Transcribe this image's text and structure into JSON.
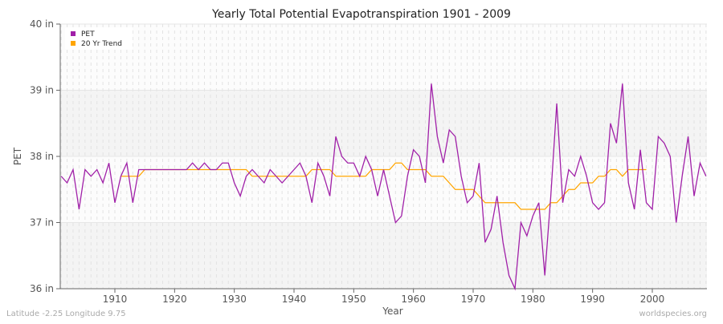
{
  "chart_data": {
    "type": "line",
    "title": "Yearly Total Potential Evapotranspiration 1901 - 2009",
    "xlabel": "Year",
    "ylabel": "PET",
    "xlim": [
      1901,
      2009
    ],
    "ylim": [
      36,
      40
    ],
    "x_ticks": [
      1910,
      1920,
      1930,
      1940,
      1950,
      1960,
      1970,
      1980,
      1990,
      2000
    ],
    "y_ticks": [
      {
        "v": 36,
        "label": "36 in"
      },
      {
        "v": 37,
        "label": "37 in"
      },
      {
        "v": 38,
        "label": "38 in"
      },
      {
        "v": 39,
        "label": "39 in"
      },
      {
        "v": 40,
        "label": "40 in"
      }
    ],
    "grid": true,
    "legend_position": "top-left",
    "series": [
      {
        "name": "PET",
        "color": "#a020a8",
        "x_start": 1901,
        "values": [
          37.7,
          37.6,
          37.8,
          37.2,
          37.8,
          37.7,
          37.8,
          37.6,
          37.9,
          37.3,
          37.7,
          37.9,
          37.3,
          37.8,
          37.8,
          37.8,
          37.8,
          37.8,
          37.8,
          37.8,
          37.8,
          37.8,
          37.9,
          37.8,
          37.9,
          37.8,
          37.8,
          37.9,
          37.9,
          37.6,
          37.4,
          37.7,
          37.8,
          37.7,
          37.6,
          37.8,
          37.7,
          37.6,
          37.7,
          37.8,
          37.9,
          37.7,
          37.3,
          37.9,
          37.7,
          37.4,
          38.3,
          38.0,
          37.9,
          37.9,
          37.7,
          38.0,
          37.8,
          37.4,
          37.8,
          37.4,
          37.0,
          37.1,
          37.7,
          38.1,
          38.0,
          37.6,
          39.1,
          38.3,
          37.9,
          38.4,
          38.3,
          37.7,
          37.3,
          37.4,
          37.9,
          36.7,
          36.9,
          37.4,
          36.7,
          36.2,
          36.0,
          37.0,
          36.8,
          37.1,
          37.3,
          36.2,
          37.4,
          38.8,
          37.3,
          37.8,
          37.7,
          38.0,
          37.7,
          37.3,
          37.2,
          37.3,
          38.5,
          38.2,
          39.1,
          37.6,
          37.2,
          38.1,
          37.3,
          37.2,
          38.3,
          38.2,
          38.0,
          37.0,
          37.7,
          38.3,
          37.4,
          37.9,
          37.7
        ]
      },
      {
        "name": "20 Yr Trend",
        "color": "#ffa500",
        "x_start": 1911,
        "values": [
          37.7,
          37.7,
          37.7,
          37.7,
          37.8,
          37.8,
          37.8,
          37.8,
          37.8,
          37.8,
          37.8,
          37.8,
          37.8,
          37.8,
          37.8,
          37.8,
          37.8,
          37.8,
          37.8,
          37.8,
          37.8,
          37.8,
          37.7,
          37.7,
          37.7,
          37.7,
          37.7,
          37.7,
          37.7,
          37.7,
          37.7,
          37.7,
          37.8,
          37.8,
          37.8,
          37.8,
          37.7,
          37.7,
          37.7,
          37.7,
          37.7,
          37.7,
          37.8,
          37.8,
          37.8,
          37.8,
          37.9,
          37.9,
          37.8,
          37.8,
          37.8,
          37.8,
          37.7,
          37.7,
          37.7,
          37.6,
          37.5,
          37.5,
          37.5,
          37.5,
          37.4,
          37.3,
          37.3,
          37.3,
          37.3,
          37.3,
          37.3,
          37.2,
          37.2,
          37.2,
          37.2,
          37.2,
          37.3,
          37.3,
          37.4,
          37.5,
          37.5,
          37.6,
          37.6,
          37.6,
          37.7,
          37.7,
          37.8,
          37.8,
          37.7,
          37.8,
          37.8,
          37.8,
          37.8
        ]
      }
    ]
  },
  "footer": {
    "left": "Latitude -2.25 Longitude 9.75",
    "right": "worldspecies.org"
  }
}
